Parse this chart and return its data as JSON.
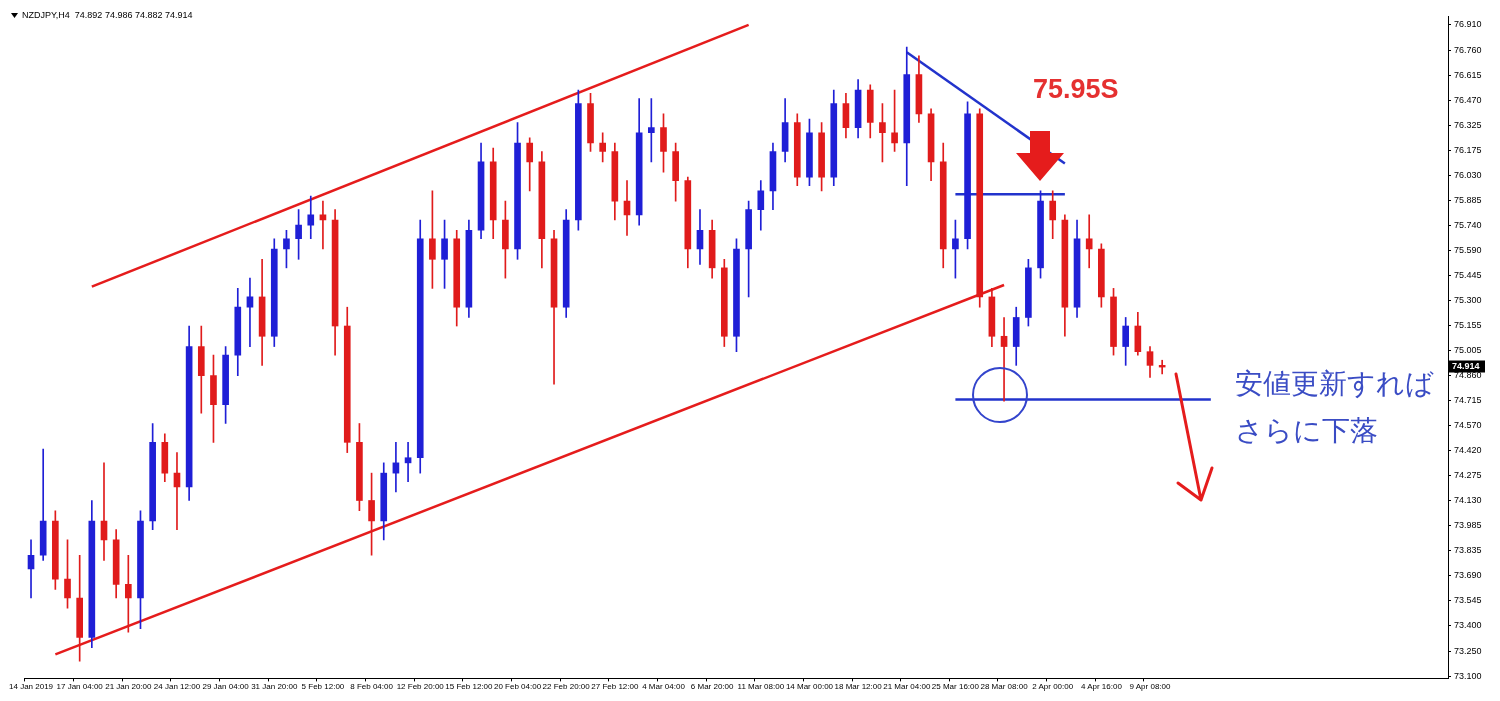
{
  "chart_data": {
    "type": "candlestick",
    "title": "NZDJPY,H4  74.892 74.986 74.882 74.914",
    "categories": [
      "14 Jan 2019",
      null,
      null,
      null,
      "17 Jan 04:00",
      null,
      null,
      null,
      "21 Jan 20:00",
      null,
      null,
      null,
      "24 Jan 12:00",
      null,
      null,
      null,
      "29 Jan 04:00",
      null,
      null,
      null,
      "31 Jan 20:00",
      null,
      null,
      null,
      "5 Feb 12:00",
      null,
      null,
      null,
      "8 Feb 04:00",
      null,
      null,
      null,
      "12 Feb 20:00",
      null,
      null,
      null,
      "15 Feb 12:00",
      null,
      null,
      null,
      "20 Feb 04:00",
      null,
      null,
      null,
      "22 Feb 20:00",
      null,
      null,
      null,
      "27 Feb 12:00",
      null,
      null,
      null,
      "4 Mar 04:00",
      null,
      null,
      null,
      "6 Mar 20:00",
      null,
      null,
      null,
      "11 Mar 08:00",
      null,
      null,
      null,
      "14 Mar 00:00",
      null,
      null,
      null,
      "18 Mar 12:00",
      null,
      null,
      null,
      "21 Mar 04:00",
      null,
      null,
      null,
      "25 Mar 16:00",
      null,
      null,
      null,
      "28 Mar 08:00",
      null,
      null,
      null,
      "2 Apr 00:00",
      null,
      null,
      null,
      "4 Apr 16:00",
      null,
      null,
      null,
      "9 Apr 08:00",
      null,
      null,
      null,
      null,
      null,
      null,
      null,
      null,
      null,
      null,
      null,
      null,
      null,
      null,
      null,
      null,
      null,
      null,
      null,
      null,
      null,
      null,
      null,
      null
    ],
    "ohlc": [
      [
        73.73,
        73.9,
        73.56,
        73.81
      ],
      [
        73.81,
        74.43,
        73.78,
        74.01
      ],
      [
        74.01,
        74.07,
        73.61,
        73.67
      ],
      [
        73.67,
        73.9,
        73.5,
        73.56
      ],
      [
        73.56,
        73.81,
        73.19,
        73.33
      ],
      [
        73.33,
        74.13,
        73.27,
        74.01
      ],
      [
        74.01,
        74.35,
        73.78,
        73.9
      ],
      [
        73.9,
        73.96,
        73.56,
        73.64
      ],
      [
        73.64,
        73.81,
        73.36,
        73.56
      ],
      [
        73.56,
        74.07,
        73.38,
        74.01
      ],
      [
        74.01,
        74.58,
        73.96,
        74.47
      ],
      [
        74.47,
        74.52,
        74.24,
        74.29
      ],
      [
        74.29,
        74.41,
        73.96,
        74.21
      ],
      [
        74.21,
        75.15,
        74.13,
        75.03
      ],
      [
        75.03,
        75.15,
        74.64,
        74.86
      ],
      [
        74.86,
        74.98,
        74.47,
        74.69
      ],
      [
        74.69,
        75.03,
        74.58,
        74.98
      ],
      [
        74.98,
        75.37,
        74.86,
        75.26
      ],
      [
        75.26,
        75.43,
        75.03,
        75.32
      ],
      [
        75.32,
        75.54,
        74.92,
        75.09
      ],
      [
        75.09,
        75.66,
        75.03,
        75.6
      ],
      [
        75.6,
        75.71,
        75.49,
        75.66
      ],
      [
        75.66,
        75.83,
        75.54,
        75.74
      ],
      [
        75.74,
        75.91,
        75.66,
        75.8
      ],
      [
        75.8,
        75.88,
        75.6,
        75.77
      ],
      [
        75.77,
        75.83,
        74.98,
        75.15
      ],
      [
        75.15,
        75.26,
        74.41,
        74.47
      ],
      [
        74.47,
        74.58,
        74.07,
        74.13
      ],
      [
        74.13,
        74.29,
        73.81,
        74.01
      ],
      [
        74.01,
        74.35,
        73.9,
        74.29
      ],
      [
        74.29,
        74.47,
        74.18,
        74.35
      ],
      [
        74.35,
        74.47,
        74.24,
        74.38
      ],
      [
        74.38,
        75.77,
        74.29,
        75.66
      ],
      [
        75.66,
        75.94,
        75.37,
        75.54
      ],
      [
        75.54,
        75.77,
        75.37,
        75.66
      ],
      [
        75.66,
        75.71,
        75.15,
        75.26
      ],
      [
        75.26,
        75.77,
        75.2,
        75.71
      ],
      [
        75.71,
        76.22,
        75.66,
        76.11
      ],
      [
        76.11,
        76.19,
        75.66,
        75.77
      ],
      [
        75.77,
        75.88,
        75.43,
        75.6
      ],
      [
        75.6,
        76.34,
        75.54,
        76.22
      ],
      [
        76.22,
        76.25,
        75.94,
        76.11
      ],
      [
        76.11,
        76.17,
        75.49,
        75.66
      ],
      [
        75.66,
        75.71,
        74.81,
        75.26
      ],
      [
        75.26,
        75.83,
        75.2,
        75.77
      ],
      [
        75.77,
        76.53,
        75.71,
        76.45
      ],
      [
        76.45,
        76.51,
        76.17,
        76.22
      ],
      [
        76.22,
        76.28,
        76.11,
        76.17
      ],
      [
        76.17,
        76.22,
        75.77,
        75.88
      ],
      [
        75.88,
        76.0,
        75.68,
        75.8
      ],
      [
        75.8,
        76.48,
        75.74,
        76.28
      ],
      [
        76.28,
        76.48,
        76.11,
        76.31
      ],
      [
        76.31,
        76.39,
        76.05,
        76.17
      ],
      [
        76.17,
        76.22,
        75.88,
        76.0
      ],
      [
        76.0,
        76.02,
        75.49,
        75.6
      ],
      [
        75.6,
        75.83,
        75.51,
        75.71
      ],
      [
        75.71,
        75.77,
        75.43,
        75.49
      ],
      [
        75.49,
        75.54,
        75.03,
        75.09
      ],
      [
        75.09,
        75.66,
        75.0,
        75.6
      ],
      [
        75.6,
        75.88,
        75.32,
        75.83
      ],
      [
        75.83,
        76.0,
        75.71,
        75.94
      ],
      [
        75.94,
        76.22,
        75.83,
        76.17
      ],
      [
        76.17,
        76.48,
        76.11,
        76.34
      ],
      [
        76.34,
        76.39,
        75.97,
        76.02
      ],
      [
        76.02,
        76.36,
        75.97,
        76.28
      ],
      [
        76.28,
        76.34,
        75.94,
        76.02
      ],
      [
        76.02,
        76.53,
        75.97,
        76.45
      ],
      [
        76.45,
        76.51,
        76.25,
        76.31
      ],
      [
        76.31,
        76.59,
        76.25,
        76.53
      ],
      [
        76.53,
        76.56,
        76.25,
        76.34
      ],
      [
        76.34,
        76.45,
        76.11,
        76.28
      ],
      [
        76.28,
        76.53,
        76.17,
        76.22
      ],
      [
        76.22,
        76.78,
        75.97,
        76.62
      ],
      [
        76.62,
        76.73,
        76.34,
        76.39
      ],
      [
        76.39,
        76.42,
        76.0,
        76.11
      ],
      [
        76.11,
        76.22,
        75.49,
        75.6
      ],
      [
        75.6,
        75.77,
        75.43,
        75.66
      ],
      [
        75.66,
        76.46,
        75.6,
        76.39
      ],
      [
        76.39,
        76.42,
        75.26,
        75.32
      ],
      [
        75.32,
        75.37,
        75.03,
        75.09
      ],
      [
        75.09,
        75.2,
        74.71,
        75.03
      ],
      [
        75.03,
        75.26,
        74.92,
        75.2
      ],
      [
        75.2,
        75.54,
        75.15,
        75.49
      ],
      [
        75.49,
        75.94,
        75.43,
        75.88
      ],
      [
        75.88,
        75.94,
        75.66,
        75.77
      ],
      [
        75.77,
        75.8,
        75.09,
        75.26
      ],
      [
        75.26,
        75.77,
        75.2,
        75.66
      ],
      [
        75.66,
        75.8,
        75.49,
        75.6
      ],
      [
        75.6,
        75.63,
        75.26,
        75.32
      ],
      [
        75.32,
        75.37,
        74.98,
        75.03
      ],
      [
        75.03,
        75.2,
        74.92,
        75.15
      ],
      [
        75.15,
        75.23,
        74.98,
        75.0
      ],
      [
        75.0,
        75.03,
        74.85,
        74.92
      ],
      [
        74.92,
        74.95,
        74.87,
        74.91
      ],
      null,
      null,
      null,
      null,
      null,
      null,
      null,
      null,
      null,
      null,
      null,
      null,
      null,
      null,
      null,
      null,
      null,
      null,
      null,
      null,
      null,
      null,
      null
    ],
    "colors": [
      "#1f1fd6",
      "#1f1fd6",
      "#e01b1b",
      "#e01b1b",
      "#e01b1b",
      "#1f1fd6",
      "#e01b1b",
      "#e01b1b",
      "#e01b1b",
      "#1f1fd6",
      "#1f1fd6",
      "#e01b1b",
      "#e01b1b",
      "#1f1fd6",
      "#e01b1b",
      "#e01b1b",
      "#1f1fd6",
      "#1f1fd6",
      "#1f1fd6",
      "#e01b1b",
      "#1f1fd6",
      "#1f1fd6",
      "#1f1fd6",
      "#1f1fd6",
      "#e01b1b",
      "#e01b1b",
      "#e01b1b",
      "#e01b1b",
      "#e01b1b",
      "#1f1fd6",
      "#1f1fd6",
      "#1f1fd6",
      "#1f1fd6",
      "#e01b1b",
      "#1f1fd6",
      "#e01b1b",
      "#1f1fd6",
      "#1f1fd6",
      "#e01b1b",
      "#e01b1b",
      "#1f1fd6",
      "#e01b1b",
      "#e01b1b",
      "#e01b1b",
      "#1f1fd6",
      "#1f1fd6",
      "#e01b1b",
      "#e01b1b",
      "#e01b1b",
      "#e01b1b",
      "#1f1fd6",
      "#1f1fd6",
      "#e01b1b",
      "#e01b1b",
      "#e01b1b",
      "#1f1fd6",
      "#e01b1b",
      "#e01b1b",
      "#1f1fd6",
      "#1f1fd6",
      "#1f1fd6",
      "#1f1fd6",
      "#1f1fd6",
      "#e01b1b",
      "#1f1fd6",
      "#e01b1b",
      "#1f1fd6",
      "#e01b1b",
      "#1f1fd6",
      "#e01b1b",
      "#e01b1b",
      "#e01b1b",
      "#1f1fd6",
      "#e01b1b",
      "#e01b1b",
      "#e01b1b",
      "#1f1fd6",
      "#1f1fd6",
      "#e01b1b",
      "#e01b1b",
      "#e01b1b",
      "#1f1fd6",
      "#1f1fd6",
      "#1f1fd6",
      "#e01b1b",
      "#e01b1b",
      "#1f1fd6",
      "#e01b1b",
      "#e01b1b",
      "#e01b1b",
      "#1f1fd6",
      "#e01b1b",
      "#e01b1b",
      "#e01b1b",
      null,
      null,
      null,
      null,
      null,
      null,
      null,
      null,
      null,
      null,
      null,
      null,
      null,
      null,
      null,
      null,
      null,
      null,
      null,
      null,
      null,
      null,
      null
    ],
    "series": [
      {
        "type": "line",
        "color": "#e51c1c",
        "values": [
          null,
          null,
          null,
          null,
          null,
          75.38,
          null,
          null,
          null,
          null,
          null,
          null,
          null,
          null,
          null,
          null,
          null,
          null,
          null,
          null,
          null,
          null,
          null,
          null,
          null,
          null,
          null,
          null,
          null,
          null,
          null,
          null,
          null,
          null,
          null,
          null,
          null,
          null,
          null,
          null,
          null,
          null,
          null,
          null,
          null,
          null,
          null,
          null,
          null,
          null,
          null,
          null,
          null,
          null,
          null,
          null,
          null,
          null,
          null,
          76.91,
          null,
          null,
          null,
          null,
          null,
          null,
          null,
          null,
          null,
          null,
          null,
          null,
          null,
          null,
          null,
          null,
          null,
          null,
          null,
          null,
          null,
          null,
          null,
          null,
          null,
          null,
          null,
          null,
          null,
          null,
          null,
          null,
          null,
          null,
          null,
          null,
          null,
          null,
          null,
          null,
          null,
          null,
          null,
          null,
          null,
          null,
          null,
          null,
          null,
          null,
          null,
          null,
          null,
          null,
          null,
          null,
          null
        ]
      },
      {
        "type": "line",
        "color": "#e51c1c",
        "values": [
          null,
          null,
          73.23,
          null,
          null,
          null,
          null,
          null,
          null,
          null,
          null,
          null,
          null,
          null,
          null,
          null,
          null,
          null,
          null,
          null,
          null,
          null,
          null,
          null,
          null,
          null,
          null,
          null,
          null,
          null,
          null,
          null,
          null,
          null,
          null,
          null,
          null,
          null,
          null,
          null,
          null,
          null,
          null,
          null,
          null,
          null,
          null,
          null,
          null,
          null,
          null,
          null,
          null,
          null,
          null,
          null,
          null,
          null,
          null,
          null,
          null,
          null,
          null,
          null,
          null,
          null,
          null,
          null,
          null,
          null,
          null,
          null,
          null,
          null,
          null,
          null,
          null,
          null,
          null,
          null,
          75.39,
          null,
          null,
          null,
          null,
          null,
          null,
          null,
          null,
          null,
          null,
          null,
          null,
          null,
          null,
          null,
          null,
          null,
          null,
          null,
          null,
          null,
          null,
          null,
          null,
          null,
          null,
          null,
          null,
          null,
          null,
          null,
          null,
          null,
          null,
          null,
          null
        ]
      },
      {
        "type": "line",
        "color": "#2233cc",
        "values": [
          null,
          null,
          null,
          null,
          null,
          null,
          null,
          null,
          null,
          null,
          null,
          null,
          null,
          null,
          null,
          null,
          null,
          null,
          null,
          null,
          null,
          null,
          null,
          null,
          null,
          null,
          null,
          null,
          null,
          null,
          null,
          null,
          null,
          null,
          null,
          null,
          null,
          null,
          null,
          null,
          null,
          null,
          null,
          null,
          null,
          null,
          null,
          null,
          null,
          null,
          null,
          null,
          null,
          null,
          null,
          null,
          null,
          null,
          null,
          null,
          null,
          null,
          null,
          null,
          null,
          null,
          null,
          null,
          null,
          null,
          null,
          null,
          76.75,
          null,
          null,
          null,
          null,
          null,
          null,
          null,
          null,
          null,
          null,
          null,
          null,
          76.1,
          null,
          null,
          null,
          null,
          null,
          null,
          null,
          null,
          null,
          null,
          null,
          null,
          null,
          null,
          null,
          null,
          null,
          null,
          null,
          null,
          null,
          null,
          null,
          null,
          null,
          null,
          null,
          null,
          null,
          null,
          null
        ]
      },
      {
        "type": "line",
        "color": "#2233cc",
        "values": [
          null,
          null,
          null,
          null,
          null,
          null,
          null,
          null,
          null,
          null,
          null,
          null,
          null,
          null,
          null,
          null,
          null,
          null,
          null,
          null,
          null,
          null,
          null,
          null,
          null,
          null,
          null,
          null,
          null,
          null,
          null,
          null,
          null,
          null,
          null,
          null,
          null,
          null,
          null,
          null,
          null,
          null,
          null,
          null,
          null,
          null,
          null,
          null,
          null,
          null,
          null,
          null,
          null,
          null,
          null,
          null,
          null,
          null,
          null,
          null,
          null,
          null,
          null,
          null,
          null,
          null,
          null,
          null,
          null,
          null,
          null,
          null,
          null,
          null,
          null,
          null,
          75.92,
          null,
          null,
          null,
          null,
          null,
          null,
          null,
          null,
          75.92,
          null,
          null,
          null,
          null,
          null,
          null,
          null,
          null,
          null,
          null,
          null,
          null,
          null,
          null,
          null,
          null,
          null,
          null,
          null,
          null,
          null,
          null,
          null,
          null,
          null,
          null,
          null,
          null,
          null,
          null,
          null
        ]
      },
      {
        "type": "line",
        "color": "#2233cc",
        "values": [
          null,
          null,
          null,
          null,
          null,
          null,
          null,
          null,
          null,
          null,
          null,
          null,
          null,
          null,
          null,
          null,
          null,
          null,
          null,
          null,
          null,
          null,
          null,
          null,
          null,
          null,
          null,
          null,
          null,
          null,
          null,
          null,
          null,
          null,
          null,
          null,
          null,
          null,
          null,
          null,
          null,
          null,
          null,
          null,
          null,
          null,
          null,
          null,
          null,
          null,
          null,
          null,
          null,
          null,
          null,
          null,
          null,
          null,
          null,
          null,
          null,
          null,
          null,
          null,
          null,
          null,
          null,
          null,
          null,
          null,
          null,
          null,
          null,
          null,
          null,
          null,
          74.72,
          null,
          null,
          null,
          null,
          null,
          null,
          null,
          null,
          null,
          null,
          null,
          null,
          null,
          null,
          null,
          null,
          null,
          null,
          null,
          null,
          74.72,
          null,
          null,
          null,
          null,
          null,
          null,
          null,
          null,
          null,
          null,
          null,
          null,
          null,
          null,
          null,
          null,
          null,
          null,
          null
        ]
      }
    ],
    "ylim": [
      73.09,
      76.96
    ],
    "yticks": [
      {
        "value": 73.1,
        "label": "73.100"
      },
      {
        "value": 73.25,
        "label": "73.250"
      },
      {
        "value": 73.4,
        "label": "73.400"
      },
      {
        "value": 73.545,
        "label": "73.545"
      },
      {
        "value": 73.69,
        "label": "73.690"
      },
      {
        "value": 73.835,
        "label": "73.835"
      },
      {
        "value": 73.985,
        "label": "73.985"
      },
      {
        "value": 74.13,
        "label": "74.130"
      },
      {
        "value": 74.275,
        "label": "74.275"
      },
      {
        "value": 74.42,
        "label": "74.420"
      },
      {
        "value": 74.57,
        "label": "74.570"
      },
      {
        "value": 74.715,
        "label": "74.715"
      },
      {
        "value": 74.86,
        "label": "74.860"
      },
      {
        "value": 75.005,
        "label": "75.005"
      },
      {
        "value": 75.155,
        "label": "75.155"
      },
      {
        "value": 75.3,
        "label": "75.300"
      },
      {
        "value": 75.445,
        "label": "75.445"
      },
      {
        "value": 75.59,
        "label": "75.590"
      },
      {
        "value": 75.74,
        "label": "75.740"
      },
      {
        "value": 75.885,
        "label": "75.885"
      },
      {
        "value": 76.03,
        "label": "76.030"
      },
      {
        "value": 76.175,
        "label": "76.175"
      },
      {
        "value": 76.325,
        "label": "76.325"
      },
      {
        "value": 76.47,
        "label": "76.470"
      },
      {
        "value": 76.615,
        "label": "76.615"
      },
      {
        "value": 76.76,
        "label": "76.760"
      },
      {
        "value": 76.91,
        "label": "76.910"
      }
    ],
    "annotations": [
      "75.95S",
      "安値更新すればさらに下落",
      {
        "text": "74.914",
        "y": 74.914
      }
    ]
  }
}
